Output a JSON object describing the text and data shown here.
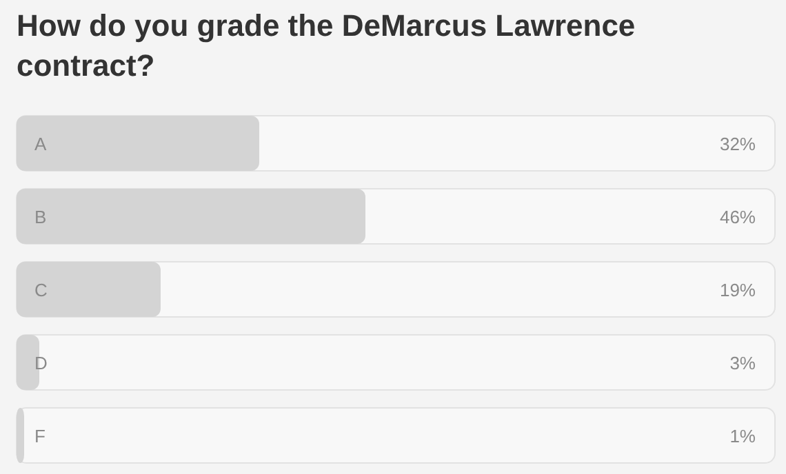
{
  "chart_data": {
    "type": "bar",
    "orientation": "horizontal",
    "title": "How do you grade the DeMarcus Lawrence contract?",
    "categories": [
      "A",
      "B",
      "C",
      "D",
      "F"
    ],
    "values": [
      32,
      46,
      19,
      3,
      1
    ],
    "value_labels": [
      "32%",
      "46%",
      "19%",
      "3%",
      "1%"
    ],
    "color": "#d4d4d4",
    "xlim": [
      0,
      100
    ]
  }
}
